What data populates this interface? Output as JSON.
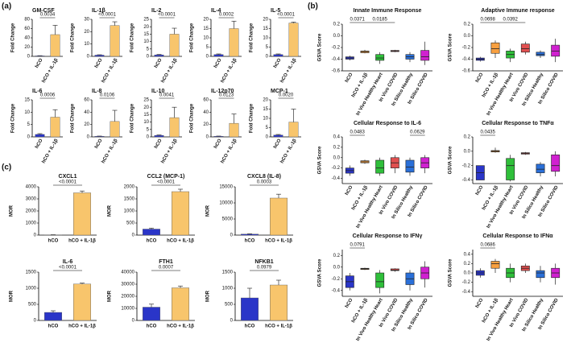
{
  "panel_labels": [
    "(a)",
    "(b)",
    "(c)"
  ],
  "chart_data": [
    {
      "type": "bar",
      "title": "GM-CSF",
      "ylabel": "Fold Change",
      "categories": [
        "hCO",
        "hCO + IL-1β"
      ],
      "values": [
        1,
        47
      ],
      "errors": [
        0.5,
        20
      ],
      "colors": [
        "#2a35c8",
        "#f8c56c"
      ],
      "ylim": [
        0,
        80
      ],
      "yticks": [
        0,
        20,
        40,
        60,
        80
      ],
      "p_value": "0.0034"
    },
    {
      "type": "bar",
      "title": "IL-1β",
      "ylabel": "Fold Change",
      "categories": [
        "hCO",
        "hCO + IL-1β"
      ],
      "values": [
        1,
        25
      ],
      "errors": [
        0.3,
        3
      ],
      "colors": [
        "#2a35c8",
        "#f8c56c"
      ],
      "ylim": [
        0,
        30
      ],
      "yticks": [
        0,
        10,
        20,
        30
      ],
      "p_value": "<0.0001"
    },
    {
      "type": "bar",
      "title": "IL-2",
      "ylabel": "Fold Change",
      "categories": [
        "hCO",
        "hCO + IL-1β"
      ],
      "values": [
        1,
        15
      ],
      "errors": [
        0.3,
        4
      ],
      "colors": [
        "#2a35c8",
        "#f8c56c"
      ],
      "ylim": [
        0,
        25
      ],
      "yticks": [
        0,
        5,
        10,
        15,
        20,
        25
      ],
      "p_value": "<0.0001"
    },
    {
      "type": "bar",
      "title": "IL-4",
      "ylabel": "Fold Change",
      "categories": [
        "hCO",
        "hCO + IL-1β"
      ],
      "values": [
        1,
        15
      ],
      "errors": [
        0.3,
        4
      ],
      "colors": [
        "#2a35c8",
        "#f8c56c"
      ],
      "ylim": [
        0,
        20
      ],
      "yticks": [
        0,
        5,
        10,
        15,
        20
      ],
      "p_value": "0.0002"
    },
    {
      "type": "bar",
      "title": "IL-5",
      "ylabel": "Fold Change",
      "categories": [
        "hCO",
        "hCO + IL-1β"
      ],
      "values": [
        1,
        18
      ],
      "errors": [
        0.3,
        0.5
      ],
      "colors": [
        "#2a35c8",
        "#f8c56c"
      ],
      "ylim": [
        0,
        20
      ],
      "yticks": [
        0,
        5,
        10,
        15,
        20
      ],
      "p_value": "<0.0001"
    },
    {
      "type": "bar",
      "title": "IL-6",
      "ylabel": "Fold Change",
      "categories": [
        "hCO",
        "hCO + IL-1β"
      ],
      "values": [
        1,
        8
      ],
      "errors": [
        0.3,
        3
      ],
      "colors": [
        "#2a35c8",
        "#f8c56c"
      ],
      "ylim": [
        0,
        15
      ],
      "yticks": [
        0,
        5,
        10,
        15
      ],
      "p_value": "0.0006"
    },
    {
      "type": "bar",
      "title": "IL-8",
      "ylabel": "Fold Change",
      "categories": [
        "hCO",
        "hCO + IL-1β"
      ],
      "values": [
        1,
        25
      ],
      "errors": [
        0.3,
        18
      ],
      "colors": [
        "#2a35c8",
        "#f8c56c"
      ],
      "ylim": [
        0,
        60
      ],
      "yticks": [
        0,
        20,
        40,
        60
      ],
      "p_value": "0.0106"
    },
    {
      "type": "bar",
      "title": "IL-10",
      "ylabel": "Fold Change",
      "categories": [
        "hCO",
        "hCO + IL-1β"
      ],
      "values": [
        1,
        13
      ],
      "errors": [
        0.3,
        7
      ],
      "colors": [
        "#2a35c8",
        "#f8c56c"
      ],
      "ylim": [
        0,
        25
      ],
      "yticks": [
        0,
        5,
        10,
        15,
        20,
        25
      ],
      "p_value": "0.0041"
    },
    {
      "type": "bar",
      "title": "IL-12p70",
      "ylabel": "Fold Change",
      "categories": [
        "hCO",
        "hCO + IL-1β"
      ],
      "values": [
        1,
        22
      ],
      "errors": [
        0.3,
        15
      ],
      "colors": [
        "#2a35c8",
        "#f8c56c"
      ],
      "ylim": [
        0,
        60
      ],
      "yticks": [
        0,
        20,
        40,
        60
      ],
      "p_value": "0.0123"
    },
    {
      "type": "bar",
      "title": "MCP-1",
      "ylabel": "Fold Change",
      "categories": [
        "hCO",
        "hCO + IL-1β"
      ],
      "values": [
        1,
        8
      ],
      "errors": [
        0.3,
        7
      ],
      "colors": [
        "#2a35c8",
        "#f8c56c"
      ],
      "ylim": [
        0,
        20
      ],
      "yticks": [
        0,
        5,
        10,
        15,
        20
      ],
      "p_value": "0.0020"
    },
    {
      "type": "box",
      "title": "Innate Immune Response",
      "ylabel": "GSVA Score",
      "categories": [
        "hCO",
        "hCO + IL-1β",
        "In Vivo Healthy Heart",
        "In Vivo COVID",
        "In Silico Healthy",
        "In Silico COVID"
      ],
      "colors": [
        "#2a35c8",
        "#f8a040",
        "#2fbf3a",
        "#e05050",
        "#2a6fd8",
        "#d020d0"
      ],
      "values": [
        [
          -0.42,
          -0.4,
          -0.38,
          -0.36,
          -0.34
        ],
        [
          -0.3,
          -0.29,
          -0.27,
          -0.26,
          -0.24
        ],
        [
          -0.48,
          -0.42,
          -0.38,
          -0.32,
          -0.28
        ],
        [
          -0.28,
          -0.27,
          -0.26,
          -0.25,
          -0.24
        ],
        [
          -0.45,
          -0.4,
          -0.36,
          -0.32,
          -0.28
        ],
        [
          -0.5,
          -0.42,
          -0.36,
          -0.25,
          -0.1
        ]
      ],
      "ylim": [
        -0.6,
        0.2
      ],
      "yticks": [
        -0.6,
        -0.4,
        -0.2,
        {
          "value": 0,
          "label": "0.0"
        },
        0.2
      ],
      "annotations": [
        {
          "text": "0.0371",
          "categories": [
            "hCO",
            "hCO + IL-1β"
          ]
        },
        {
          "text": "0.0185",
          "categories": [
            "hCO + IL-1β",
            "In Vivo COVID"
          ]
        }
      ]
    },
    {
      "type": "box",
      "title": "Adaptive Immune response",
      "ylabel": "GSVA Score",
      "categories": [
        "hCO",
        "hCO + IL-1β",
        "In Vivo Healthy Heart",
        "In Vivo COVID",
        "In Silico Healthy",
        "In Silico COVID"
      ],
      "colors": [
        "#2a35c8",
        "#f8a040",
        "#2fbf3a",
        "#e05050",
        "#2a6fd8",
        "#d020d0"
      ],
      "values": [
        [
          -0.44,
          -0.42,
          -0.4,
          -0.38,
          -0.36
        ],
        [
          -0.38,
          -0.3,
          -0.22,
          -0.12,
          -0.08
        ],
        [
          -0.45,
          -0.38,
          -0.32,
          -0.26,
          -0.22
        ],
        [
          -0.32,
          -0.28,
          -0.22,
          -0.14,
          -0.1
        ],
        [
          -0.38,
          -0.34,
          -0.32,
          -0.28,
          -0.25
        ],
        [
          -0.45,
          -0.35,
          -0.26,
          -0.16,
          -0.05
        ]
      ],
      "ylim": [
        -0.6,
        0.2
      ],
      "yticks": [
        -0.6,
        -0.4,
        -0.2,
        {
          "value": 0,
          "label": "0.0"
        },
        0.2
      ],
      "annotations": [
        {
          "text": "0.0698",
          "categories": [
            "hCO",
            "hCO + IL-1β"
          ]
        },
        {
          "text": "0.0392",
          "categories": [
            "hCO + IL-1β",
            "In Vivo COVID"
          ]
        }
      ]
    },
    {
      "type": "box",
      "title": "Cellular Response to IL-6",
      "ylabel": "GSVA Score",
      "categories": [
        "hCO",
        "hCO + IL-1β",
        "In Vivo Healthy Heart",
        "In Vivo COVID",
        "In Silico Healthy",
        "In Silico COVID"
      ],
      "colors": [
        "#2a35c8",
        "#f8a040",
        "#2fbf3a",
        "#e05050",
        "#2a6fd8",
        "#d020d0"
      ],
      "values": [
        [
          -0.35,
          -0.3,
          -0.25,
          -0.2,
          -0.15
        ],
        [
          -0.12,
          -0.1,
          -0.08,
          -0.06,
          -0.04
        ],
        [
          -0.35,
          -0.3,
          -0.2,
          -0.05,
          0
        ],
        [
          -0.3,
          -0.2,
          -0.1,
          0,
          0.05
        ],
        [
          -0.35,
          -0.28,
          -0.18,
          -0.05,
          0
        ],
        [
          -0.3,
          -0.2,
          -0.1,
          0,
          0.05
        ]
      ],
      "ylim": [
        -0.5,
        0.4
      ],
      "yticks": [
        -0.4,
        -0.2,
        {
          "value": 0,
          "label": "0.0"
        },
        0.2,
        0.4
      ],
      "annotations": [
        {
          "text": "0.0483",
          "categories": [
            "hCO",
            "hCO + IL-1β"
          ]
        },
        {
          "text": "0.0629",
          "categories": [
            "In Silico Healthy",
            "In Silico COVID"
          ]
        }
      ]
    },
    {
      "type": "box",
      "title": "Cellular Response to TNFα",
      "ylabel": "GSVA Score",
      "categories": [
        "hCO",
        "hCO + IL-1β",
        "In Vivo Healthy Heart",
        "In Vivo COVID",
        "In Silico Healthy",
        "In Silico COVID"
      ],
      "colors": [
        "#2a35c8",
        "#f8a040",
        "#2fbf3a",
        "#e05050",
        "#2a6fd8",
        "#d020d0"
      ],
      "values": [
        [
          -0.4,
          -0.4,
          -0.3,
          -0.2,
          -0.2
        ],
        [
          -0.02,
          -0.01,
          0,
          0.01,
          0.05
        ],
        [
          -0.42,
          -0.4,
          -0.2,
          -0.1,
          -0.05
        ],
        [
          -0.05,
          -0.04,
          -0.03,
          -0.02,
          -0.01
        ],
        [
          -0.35,
          -0.3,
          -0.25,
          -0.18,
          -0.15
        ],
        [
          -0.35,
          -0.28,
          -0.2,
          -0.05,
          0
        ]
      ],
      "ylim": [
        -0.45,
        0.2
      ],
      "yticks": [
        -0.4,
        -0.2,
        {
          "value": 0,
          "label": "0.0"
        },
        0.2
      ],
      "annotations": [
        {
          "text": "0.0435",
          "categories": [
            "hCO",
            "hCO + IL-1β"
          ]
        }
      ]
    },
    {
      "type": "box",
      "title": "Cellular Response to IFNγ",
      "ylabel": "GSVA Score",
      "categories": [
        "hCO",
        "hCO + IL-1β",
        "In Vivo Healthy Heart",
        "In Vivo COVID",
        "In Silico Healthy",
        "In Silico COVID"
      ],
      "colors": [
        "#2a35c8",
        "#f8a040",
        "#2fbf3a",
        "#e05050",
        "#2a6fd8",
        "#d020d0"
      ],
      "values": [
        [
          -0.4,
          -0.35,
          -0.25,
          -0.15,
          -0.1
        ],
        [
          -0.05,
          -0.04,
          -0.03,
          -0.02,
          -0.01
        ],
        [
          -0.45,
          -0.35,
          -0.25,
          -0.1,
          -0.05
        ],
        [
          -0.08,
          -0.06,
          -0.05,
          -0.03,
          -0.02
        ],
        [
          -0.4,
          -0.3,
          -0.2,
          -0.1,
          -0.05
        ],
        [
          -0.35,
          -0.2,
          -0.1,
          0,
          0.1
        ]
      ],
      "ylim": [
        -0.5,
        0.3
      ],
      "yticks": [
        -0.4,
        -0.2,
        {
          "value": 0,
          "label": "0.0"
        },
        0.2
      ],
      "annotations": [
        {
          "text": "0.0791",
          "categories": [
            "hCO",
            "hCO + IL-1β"
          ]
        }
      ]
    },
    {
      "type": "box",
      "title": "Cellular Response to IFNα",
      "ylabel": "GSVA Score",
      "categories": [
        "hCO",
        "hCO + IL-1β",
        "In Vivo Healthy Heart",
        "In Vivo COVID",
        "In Silico Healthy",
        "In Silico COVID"
      ],
      "colors": [
        "#2a35c8",
        "#f8a040",
        "#2fbf3a",
        "#e05050",
        "#2a6fd8",
        "#d020d0"
      ],
      "values": [
        [
          -0.1,
          -0.05,
          0,
          0.05,
          0.1
        ],
        [
          0,
          0.1,
          0.2,
          0.25,
          0.3
        ],
        [
          -0.2,
          -0.1,
          0,
          0.1,
          0.2
        ],
        [
          0,
          0.05,
          0.1,
          0.15,
          0.2
        ],
        [
          -0.2,
          -0.1,
          0,
          0.05,
          0.15
        ],
        [
          -0.25,
          -0.1,
          0,
          0.1,
          0.2
        ]
      ],
      "ylim": [
        -0.5,
        0.5
      ],
      "yticks": [
        -0.4,
        -0.2,
        {
          "value": 0,
          "label": "0.0"
        },
        0.2,
        0.4
      ],
      "annotations": [
        {
          "text": "0.0686",
          "categories": [
            "hCO",
            "hCO + IL-1β"
          ]
        }
      ]
    },
    {
      "type": "bar",
      "title": "CXCL1",
      "ylabel": "MOR",
      "categories": [
        "hCO",
        "hCO + IL-1β"
      ],
      "values": [
        20,
        3500
      ],
      "errors": [
        10,
        150
      ],
      "colors": [
        "#2a35c8",
        "#f8c56c"
      ],
      "ylim": [
        0,
        4000
      ],
      "yticks": [
        0,
        1000,
        2000,
        3000,
        4000
      ],
      "p_value": "<0.0001"
    },
    {
      "type": "bar",
      "title": "CCL2 (MCP-1)",
      "ylabel": "MOR",
      "categories": [
        "hCO",
        "hCO + IL-1β"
      ],
      "values": [
        250,
        1800
      ],
      "errors": [
        40,
        100
      ],
      "colors": [
        "#2a35c8",
        "#f8c56c"
      ],
      "ylim": [
        0,
        2000
      ],
      "yticks": [
        0,
        500,
        1000,
        1500,
        2000
      ],
      "p_value": "<0.0001"
    },
    {
      "type": "bar",
      "title": "CXCL8 (IL-8)",
      "ylabel": "MOR",
      "categories": [
        "hCO",
        "hCO + IL-1β"
      ],
      "values": [
        300,
        11500
      ],
      "errors": [
        100,
        1200
      ],
      "colors": [
        "#2a35c8",
        "#f8c56c"
      ],
      "ylim": [
        0,
        15000
      ],
      "yticks": [
        0,
        5000,
        10000,
        15000
      ],
      "p_value": "0.0003"
    },
    {
      "type": "bar",
      "title": "IL-6",
      "ylabel": "MOR",
      "categories": [
        "hCO",
        "hCO + IL-1β"
      ],
      "values": [
        250,
        1130
      ],
      "errors": [
        50,
        30
      ],
      "colors": [
        "#2a35c8",
        "#f8c56c"
      ],
      "ylim": [
        0,
        1500
      ],
      "yticks": [
        0,
        500,
        1000,
        1500
      ],
      "p_value": "<0.0001"
    },
    {
      "type": "bar",
      "title": "FTH1",
      "ylabel": "MOR",
      "categories": [
        "hCO",
        "hCO + IL-1β"
      ],
      "values": [
        11000,
        27000
      ],
      "errors": [
        2500,
        1500
      ],
      "colors": [
        "#2a35c8",
        "#f8c56c"
      ],
      "ylim": [
        0,
        40000
      ],
      "yticks": [
        0,
        10000,
        20000,
        30000,
        40000
      ],
      "p_value": "0.0007"
    },
    {
      "type": "bar",
      "title": "NFKB1",
      "ylabel": "MOR",
      "categories": [
        "hCO",
        "hCO + IL-1β"
      ],
      "values": [
        700,
        1100
      ],
      "errors": [
        300,
        150
      ],
      "colors": [
        "#2a35c8",
        "#f8c56c"
      ],
      "ylim": [
        0,
        1500
      ],
      "yticks": [
        0,
        500,
        1000,
        1500
      ],
      "p_value": "0.0979"
    }
  ]
}
